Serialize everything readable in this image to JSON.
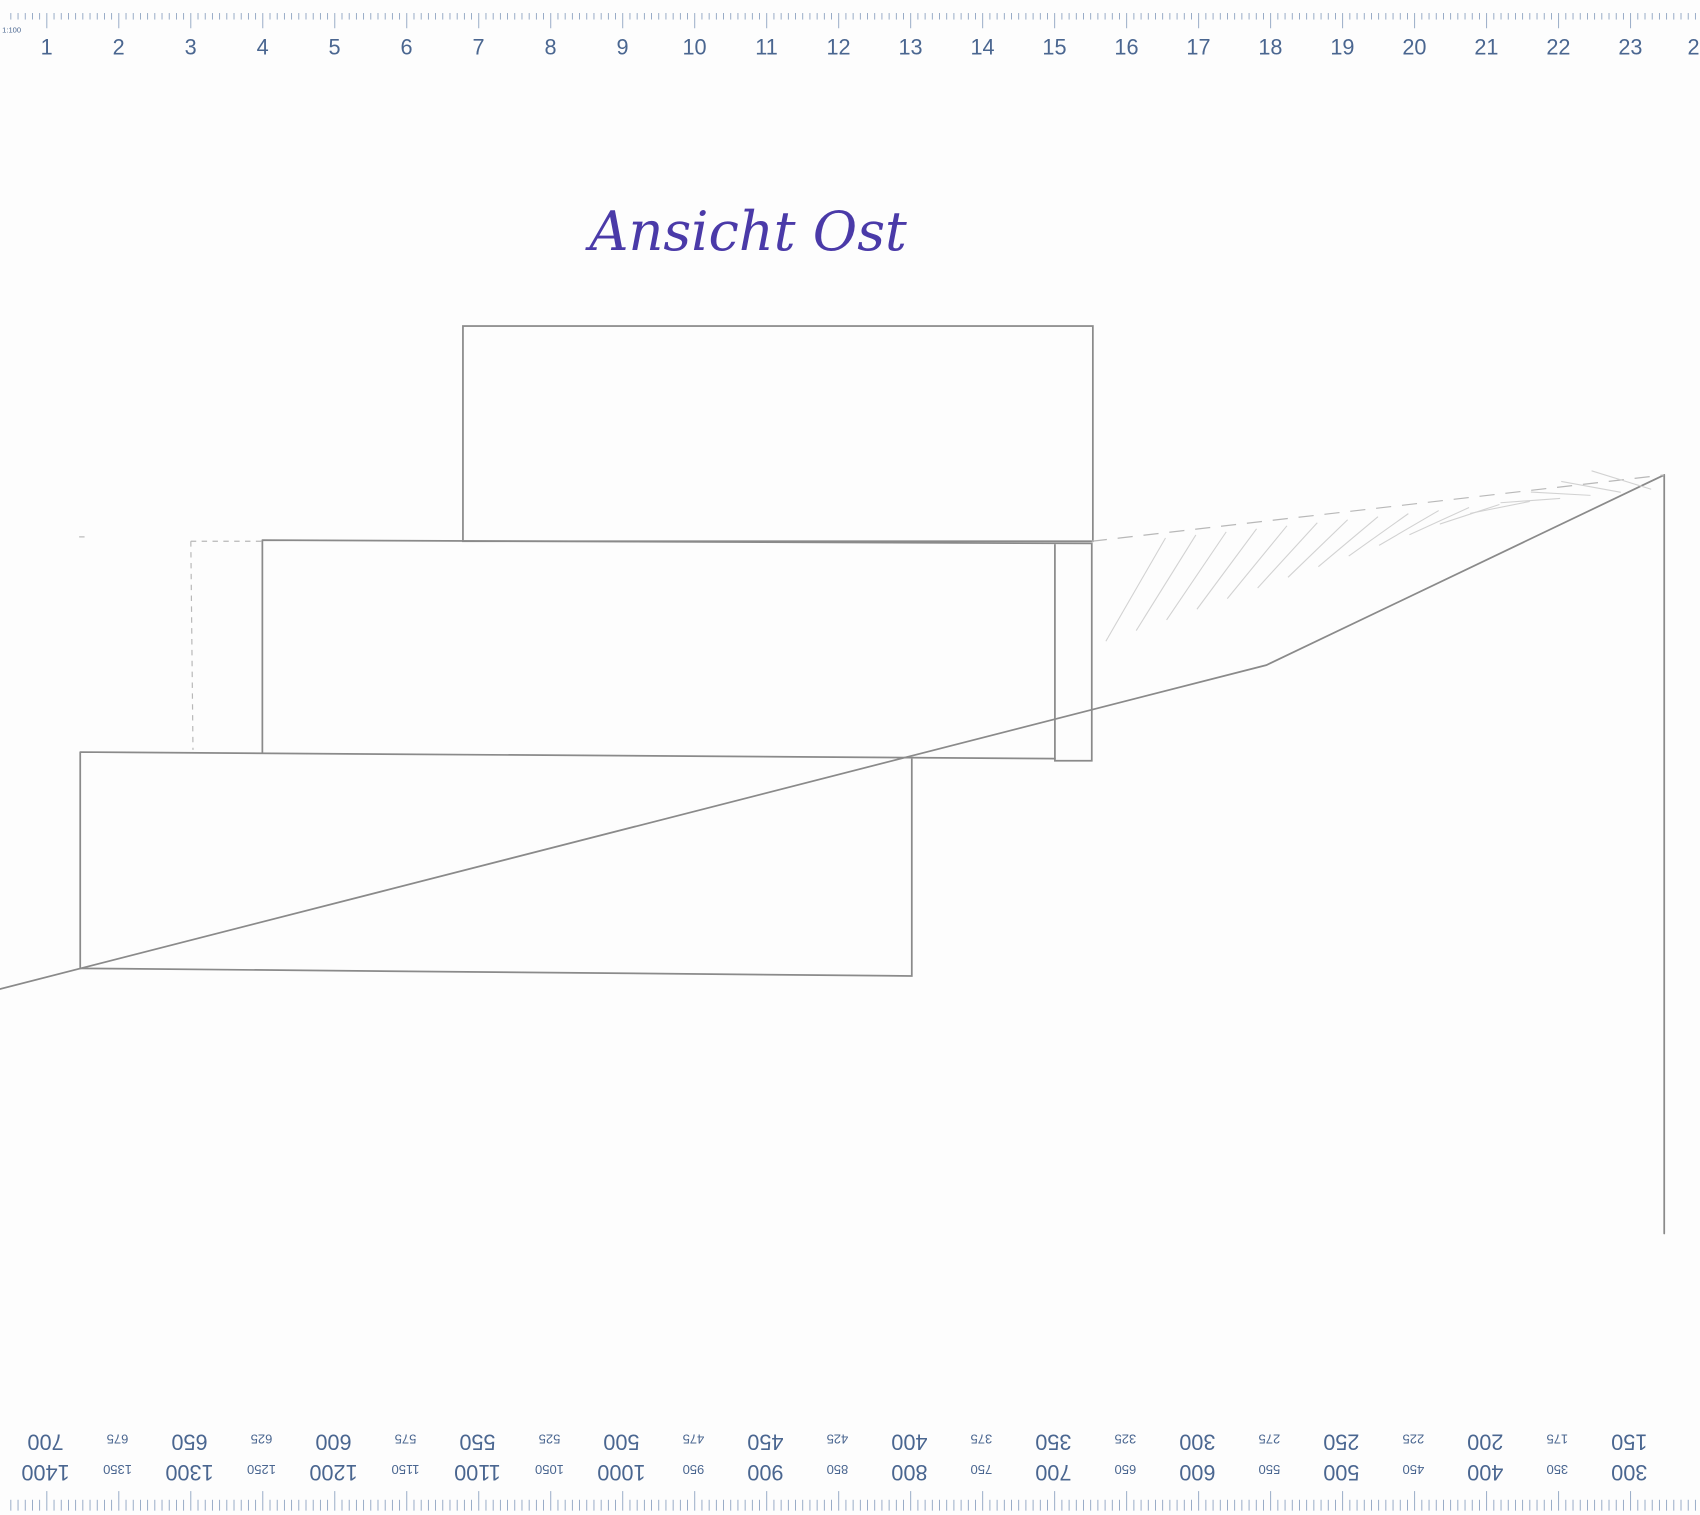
{
  "title": "Ansicht Ost",
  "ruler_top": {
    "scale": "1:100",
    "labels": [
      "1",
      "2",
      "3",
      "4",
      "5",
      "6",
      "7",
      "8",
      "9",
      "10",
      "11",
      "12",
      "13",
      "14",
      "15",
      "16",
      "17",
      "18",
      "19",
      "20",
      "21",
      "22",
      "23",
      "2"
    ]
  },
  "ruler_bottom": {
    "upper_row": [
      "700",
      "675",
      "650",
      "625",
      "600",
      "575",
      "550",
      "525",
      "500",
      "475",
      "450",
      "425",
      "400",
      "375",
      "350",
      "325",
      "300",
      "275",
      "250",
      "225",
      "200",
      "175",
      "150"
    ],
    "lower_row": [
      "1400",
      "1350",
      "1300",
      "1250",
      "1200",
      "1150",
      "1100",
      "1050",
      "1000",
      "950",
      "900",
      "850",
      "800",
      "750",
      "700",
      "650",
      "600",
      "550",
      "500",
      "450",
      "400",
      "350",
      "300"
    ]
  }
}
